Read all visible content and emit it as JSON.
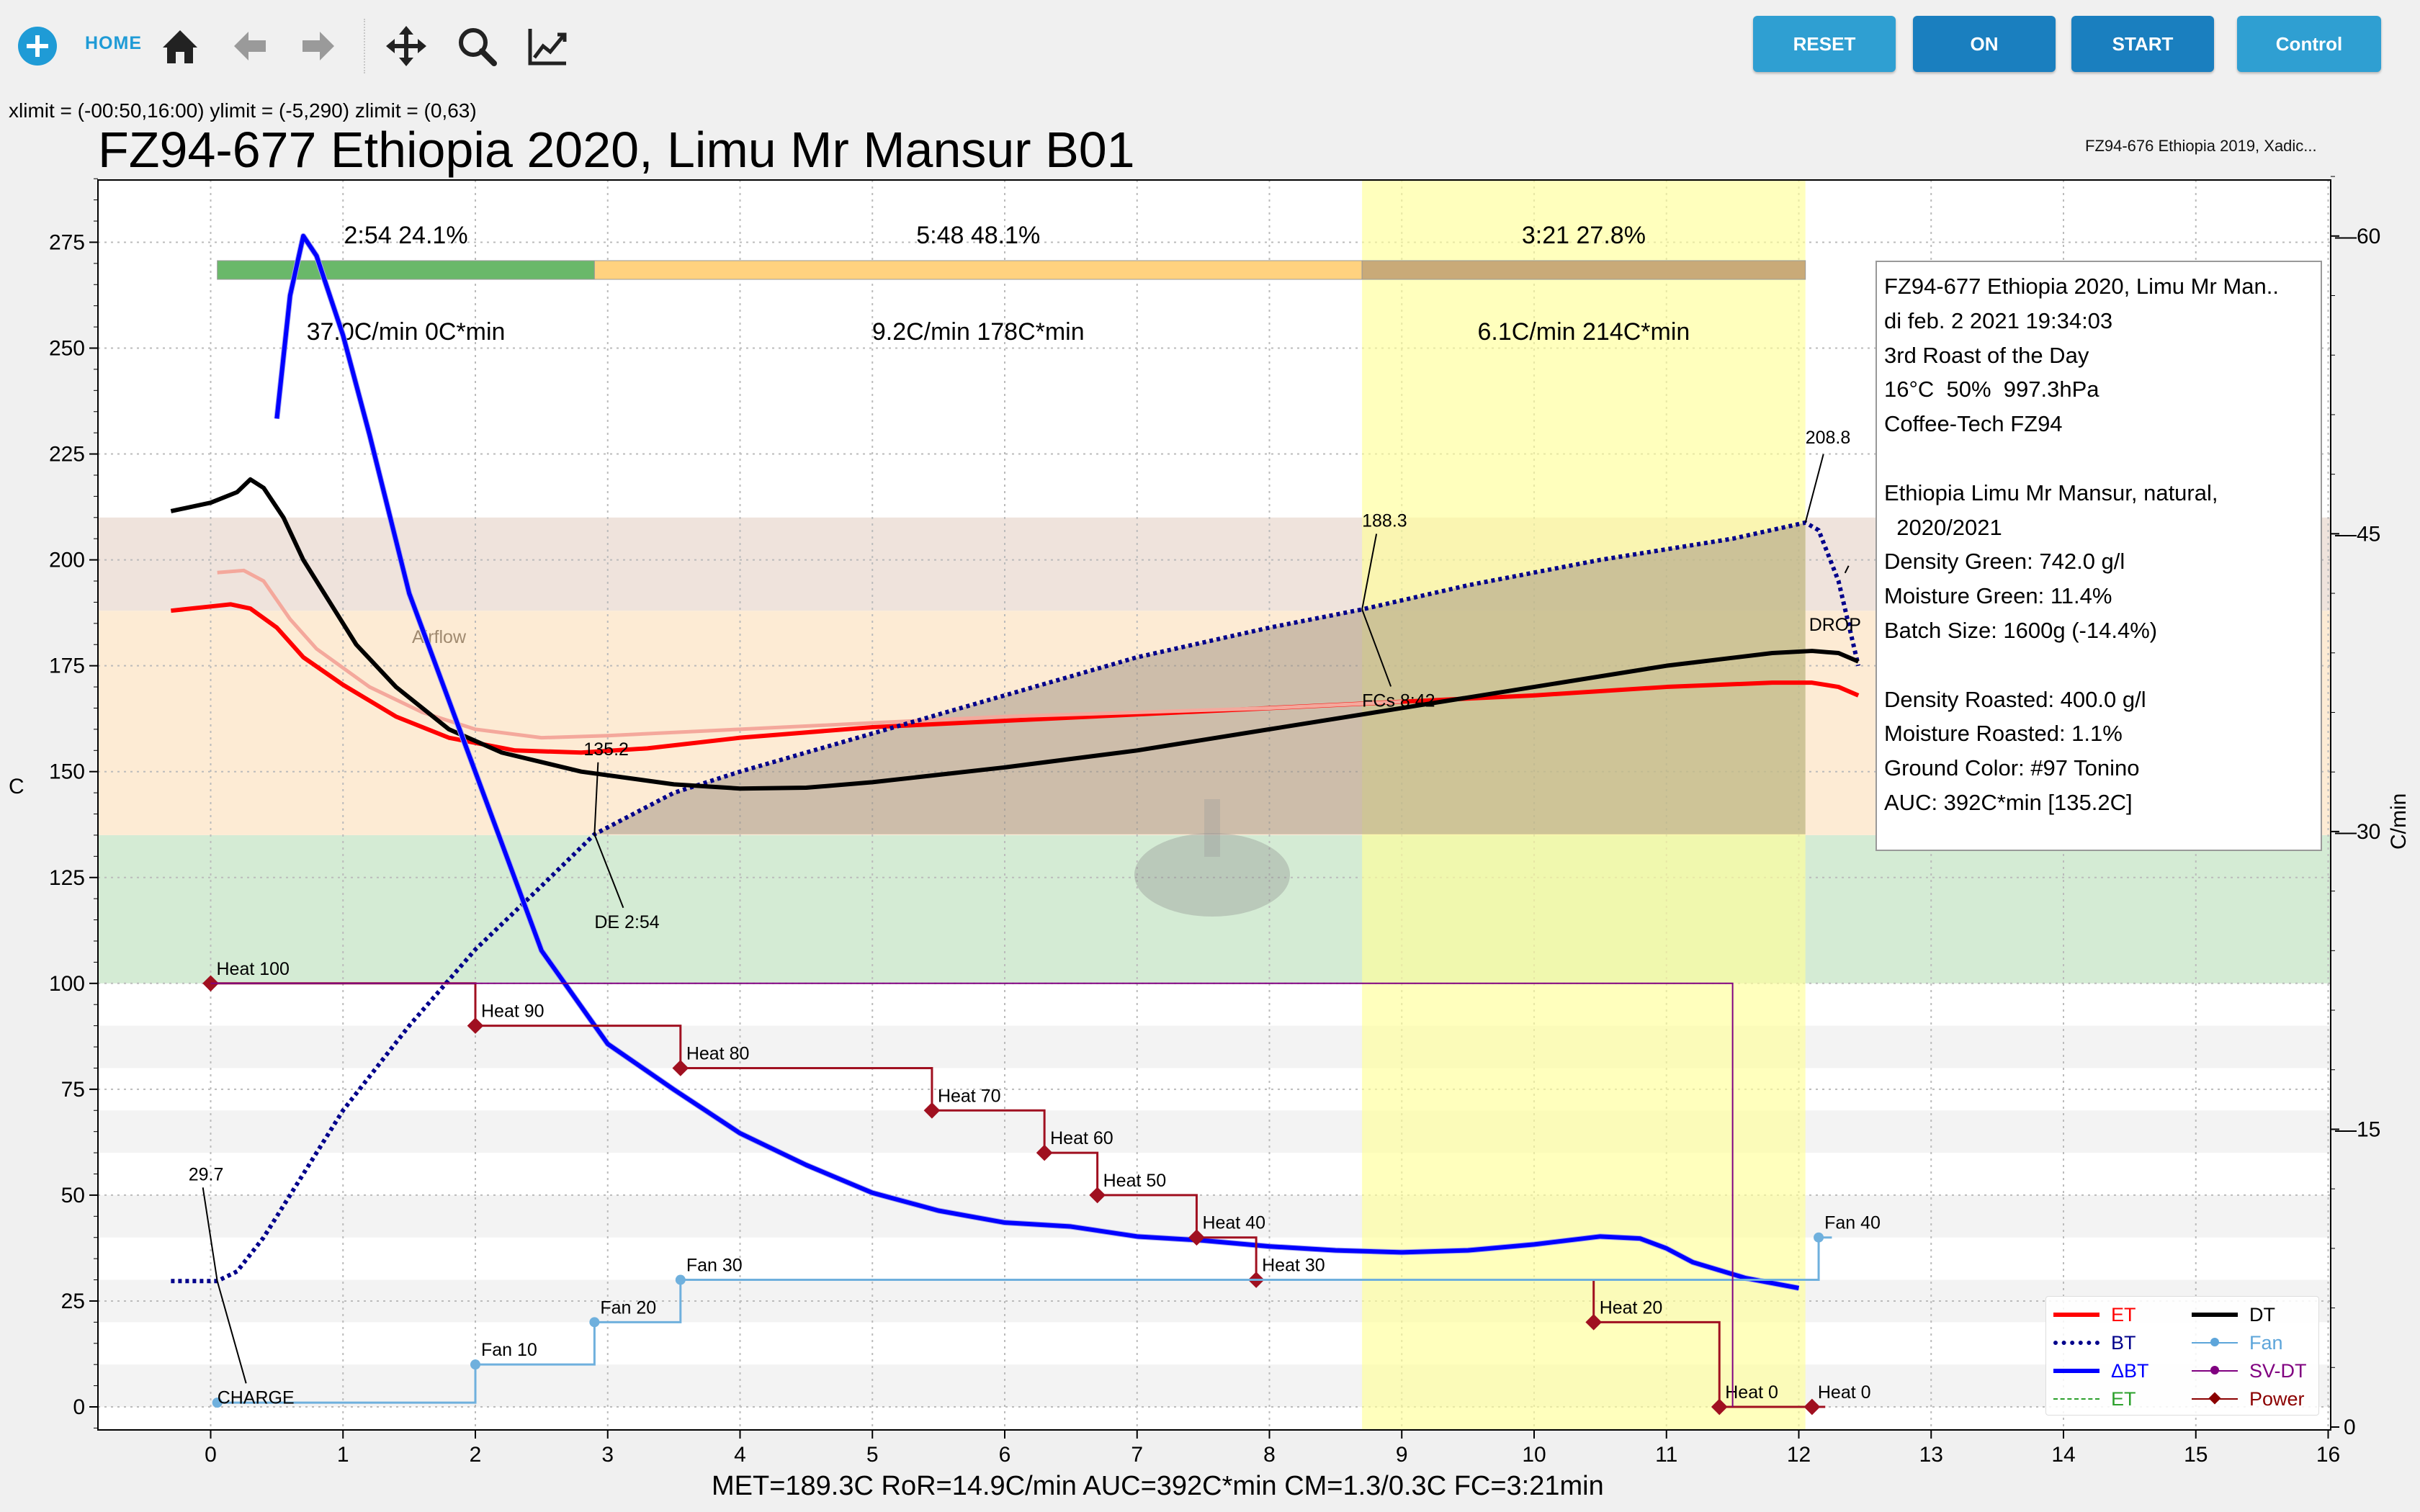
{
  "toolbar": {
    "home_label": "HOME",
    "icons": [
      "add-icon",
      "home-icon",
      "back-arrow-icon",
      "forward-arrow-icon",
      "pan-icon",
      "zoom-icon",
      "chart-line-icon"
    ],
    "buttons": [
      {
        "label": "RESET",
        "color": "#2f9fd2"
      },
      {
        "label": "ON",
        "color": "#1a7fbf"
      },
      {
        "label": "START",
        "color": "#1a7fbf"
      },
      {
        "label": "Control",
        "color": "#2f9fd2"
      }
    ]
  },
  "limits_text": "xlimit = (-00:50,16:00) ylimit = (-5,290) zlimit = (0,63)",
  "title": "FZ94-677 Ethiopia 2020, Limu Mr Mansur B01",
  "subtitle": "FZ94-676 Ethiopia 2019, Xadic...",
  "stats": "MET=189.3C   RoR=14.9C/min   AUC=392C*min   CM=1.3/0.3C   FC=3:21min",
  "infobox": [
    "FZ94-677 Ethiopia 2020, Limu Mr Man..",
    "di feb. 2 2021 19:34:03",
    "3rd Roast of the Day",
    "16°C  50%  997.3hPa",
    "Coffee-Tech FZ94",
    "",
    "Ethiopia Limu Mr Mansur, natural,",
    "  2020/2021",
    "Density Green: 742.0 g/l",
    "Moisture Green: 11.4%",
    "Batch Size: 1600g (-14.4%)",
    "",
    "Density Roasted: 400.0 g/l",
    "Moisture Roasted: 1.1%",
    "Ground Color: #97 Tonino",
    "AUC: 392C*min [135.2C]"
  ],
  "legend": [
    {
      "label": "ET",
      "color": "#ff0000",
      "style": "solid"
    },
    {
      "label": "BT",
      "color": "#00008b",
      "style": "dotted"
    },
    {
      "label": "ΔBT",
      "color": "#0000ff",
      "style": "solid"
    },
    {
      "label": "ET",
      "color": "#2ca02c",
      "style": "dashed"
    },
    {
      "label": "DT",
      "color": "#000000",
      "style": "solid"
    },
    {
      "label": "Fan",
      "color": "#5da5da",
      "style": "marker"
    },
    {
      "label": "SV-DT",
      "color": "#800080",
      "style": "marker"
    },
    {
      "label": "Power",
      "color": "#8b0000",
      "style": "diamond"
    }
  ],
  "chart_data": {
    "type": "line",
    "xlabel": "",
    "ylabel": "C",
    "y2label": "C/min",
    "xlim": [
      -0.85,
      16
    ],
    "ylim": [
      -5,
      290
    ],
    "y2lim": [
      0,
      63
    ],
    "x_ticks": [
      0,
      1,
      2,
      3,
      4,
      5,
      6,
      7,
      8,
      9,
      10,
      11,
      12,
      13,
      14,
      15,
      16
    ],
    "y_ticks": [
      0,
      25,
      50,
      75,
      100,
      125,
      150,
      175,
      200,
      225,
      250,
      275
    ],
    "y2_ticks": [
      15,
      30,
      45,
      60
    ],
    "phases": [
      {
        "start": 0.05,
        "end": 2.9,
        "time": "2:54",
        "pct": "24.1%",
        "ror": "37.0C/min  0C*min",
        "color": "#6ab86a"
      },
      {
        "start": 2.9,
        "end": 8.7,
        "time": "5:48",
        "pct": "48.1%",
        "ror": "9.2C/min  178C*min",
        "color": "#ffd27f"
      },
      {
        "start": 8.7,
        "end": 12.05,
        "time": "3:21",
        "pct": "27.8%",
        "ror": "6.1C/min  214C*min",
        "color": "#c9aa78"
      }
    ],
    "bands": [
      {
        "from": 100,
        "to": 135,
        "color": "#d4ebd4"
      },
      {
        "from": 135,
        "to": 188,
        "color": "#fdebd4"
      },
      {
        "from": 188,
        "to": 210,
        "color": "#efe3dc"
      }
    ],
    "band_label": "Airflow",
    "series": [
      {
        "name": "ET",
        "color": "#ff0000",
        "points": [
          [
            -0.3,
            188
          ],
          [
            0,
            189
          ],
          [
            0.15,
            189.5
          ],
          [
            0.3,
            188.5
          ],
          [
            0.5,
            184
          ],
          [
            0.7,
            177
          ],
          [
            1,
            170.5
          ],
          [
            1.4,
            163
          ],
          [
            1.8,
            158
          ],
          [
            2.3,
            155
          ],
          [
            2.8,
            154.5
          ],
          [
            3.3,
            155.5
          ],
          [
            4,
            158
          ],
          [
            5,
            160.5
          ],
          [
            6,
            162
          ],
          [
            7,
            163.5
          ],
          [
            8,
            165
          ],
          [
            9,
            166.5
          ],
          [
            10,
            168
          ],
          [
            11,
            170
          ],
          [
            11.8,
            171
          ],
          [
            12.1,
            171
          ],
          [
            12.3,
            170
          ],
          [
            12.45,
            168
          ]
        ]
      },
      {
        "name": "ET light",
        "color": "#f4a89c",
        "points": [
          [
            0.05,
            197
          ],
          [
            0.25,
            197.5
          ],
          [
            0.4,
            195
          ],
          [
            0.6,
            186
          ],
          [
            0.8,
            179
          ],
          [
            1.2,
            170
          ],
          [
            1.6,
            164
          ],
          [
            2,
            160
          ],
          [
            2.5,
            158
          ],
          [
            3,
            158.5
          ],
          [
            4,
            160
          ],
          [
            5,
            161.5
          ],
          [
            6,
            163
          ],
          [
            7,
            164
          ],
          [
            8,
            165
          ],
          [
            9,
            166.5
          ]
        ]
      },
      {
        "name": "BT",
        "color": "#00008b",
        "points": [
          [
            -0.3,
            29.7
          ],
          [
            0.05,
            29.7
          ],
          [
            0.2,
            32
          ],
          [
            0.4,
            40
          ],
          [
            0.7,
            55
          ],
          [
            1,
            70
          ],
          [
            1.5,
            90
          ],
          [
            2,
            108
          ],
          [
            2.5,
            123
          ],
          [
            2.9,
            135.2
          ],
          [
            3.5,
            145
          ],
          [
            4,
            150
          ],
          [
            5,
            159
          ],
          [
            6,
            168
          ],
          [
            7,
            177
          ],
          [
            8,
            184
          ],
          [
            8.7,
            188.3
          ],
          [
            9.5,
            194
          ],
          [
            10.5,
            200
          ],
          [
            11.5,
            205
          ],
          [
            12.05,
            208.8
          ],
          [
            12.15,
            207
          ],
          [
            12.3,
            195
          ],
          [
            12.45,
            175
          ]
        ]
      },
      {
        "name": "DT",
        "color": "#000000",
        "points": [
          [
            -0.3,
            211.5
          ],
          [
            0,
            213.5
          ],
          [
            0.2,
            216
          ],
          [
            0.3,
            219
          ],
          [
            0.4,
            217
          ],
          [
            0.55,
            210
          ],
          [
            0.7,
            200
          ],
          [
            0.9,
            190
          ],
          [
            1.1,
            180
          ],
          [
            1.4,
            170
          ],
          [
            1.8,
            160
          ],
          [
            2.2,
            154.5
          ],
          [
            2.8,
            150
          ],
          [
            3.5,
            147
          ],
          [
            4,
            146
          ],
          [
            4.5,
            146.2
          ],
          [
            5,
            147.5
          ],
          [
            6,
            151
          ],
          [
            7,
            155
          ],
          [
            8,
            160
          ],
          [
            9,
            165
          ],
          [
            10,
            170
          ],
          [
            11,
            175
          ],
          [
            11.8,
            178
          ],
          [
            12.1,
            178.5
          ],
          [
            12.3,
            178
          ],
          [
            12.45,
            176
          ]
        ]
      },
      {
        "name": "ΔBT",
        "color": "#0000ff",
        "axis": "y2",
        "points": [
          [
            0.5,
            50.8
          ],
          [
            0.6,
            57
          ],
          [
            0.7,
            60
          ],
          [
            0.8,
            59
          ],
          [
            1,
            55
          ],
          [
            1.2,
            50
          ],
          [
            1.5,
            42
          ],
          [
            2,
            33
          ],
          [
            2.5,
            24
          ],
          [
            3,
            19.3
          ],
          [
            3.5,
            17
          ],
          [
            4,
            14.8
          ],
          [
            4.5,
            13.2
          ],
          [
            5,
            11.8
          ],
          [
            5.5,
            10.9
          ],
          [
            6,
            10.3
          ],
          [
            6.5,
            10.1
          ],
          [
            7,
            9.6
          ],
          [
            7.5,
            9.4
          ],
          [
            8,
            9.1
          ],
          [
            8.5,
            8.9
          ],
          [
            9,
            8.8
          ],
          [
            9.5,
            8.9
          ],
          [
            10,
            9.2
          ],
          [
            10.5,
            9.6
          ],
          [
            10.8,
            9.5
          ],
          [
            11,
            9
          ],
          [
            11.2,
            8.3
          ],
          [
            11.6,
            7.5
          ],
          [
            12,
            7
          ]
        ]
      }
    ],
    "power": [
      {
        "t": 0.0,
        "v": 100,
        "label": "Heat 100"
      },
      {
        "t": 2.0,
        "v": 90,
        "label": "Heat 90"
      },
      {
        "t": 3.55,
        "v": 80,
        "label": "Heat 80"
      },
      {
        "t": 5.45,
        "v": 70,
        "label": "Heat 70"
      },
      {
        "t": 6.3,
        "v": 60,
        "label": "Heat 60"
      },
      {
        "t": 6.7,
        "v": 50,
        "label": "Heat 50"
      },
      {
        "t": 7.45,
        "v": 40,
        "label": "Heat 40"
      },
      {
        "t": 7.9,
        "v": 30,
        "label": "Heat 30"
      },
      {
        "t": 10.45,
        "v": 20,
        "label": "Heat 20"
      },
      {
        "t": 11.4,
        "v": 0,
        "label": "Heat 0"
      },
      {
        "t": 12.1,
        "v": 0,
        "label": "Heat 0"
      }
    ],
    "fan": [
      {
        "t": 0.05,
        "v": 1,
        "label": ""
      },
      {
        "t": 2.0,
        "v": 10,
        "label": "Fan 10"
      },
      {
        "t": 2.9,
        "v": 20,
        "label": "Fan 20"
      },
      {
        "t": 3.55,
        "v": 30,
        "label": "Fan 30"
      },
      {
        "t": 12.15,
        "v": 40,
        "label": "Fan 40"
      }
    ],
    "events": [
      {
        "label": "CHARGE",
        "t": 0.05,
        "v": 29.7,
        "value_label": "29.7"
      },
      {
        "label": "DE 2:54",
        "t": 2.9,
        "v": 135.2,
        "value_label": "135.2"
      },
      {
        "label": "FCs 8:42",
        "t": 8.7,
        "v": 188.3,
        "value_label": "188.3"
      },
      {
        "label": "DROP",
        "t": 12.05,
        "v": 208.8,
        "value_label": "208.8"
      }
    ]
  }
}
